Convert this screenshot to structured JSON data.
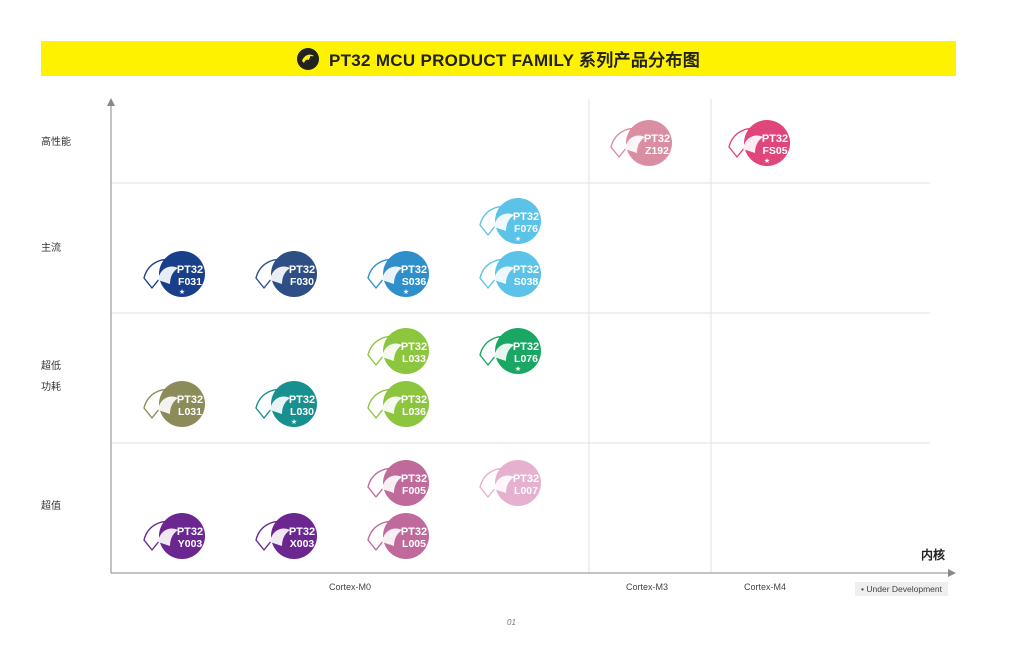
{
  "header": {
    "title": "PT32 MCU PRODUCT FAMILY 系列产品分布图",
    "logo_icon": "dolphin-logo-icon"
  },
  "rows": [
    {
      "label": "高性能"
    },
    {
      "label": "主流"
    },
    {
      "label": "超低\n功耗",
      "line1": "超低",
      "line2": "功耗"
    },
    {
      "label": "超值"
    }
  ],
  "columns": [
    {
      "label": "Cortex-M0"
    },
    {
      "label": "Cortex-M3"
    },
    {
      "label": "Cortex-M4"
    }
  ],
  "x_axis_title": "内核",
  "legend": "• Under Development",
  "page_number": "01",
  "chips": [
    {
      "line1": "PT32",
      "line2": "Z192",
      "color": "#d98ea1",
      "dev": false,
      "row": 0,
      "col": 1,
      "slot": 0
    },
    {
      "line1": "PT32",
      "line2": "FS05",
      "color": "#e0457b",
      "dev": true,
      "row": 0,
      "col": 2,
      "slot": 0
    },
    {
      "line1": "PT32",
      "line2": "F031",
      "color": "#1a3f8a",
      "dev": true,
      "row": 1,
      "col": 0,
      "slot": 0
    },
    {
      "line1": "PT32",
      "line2": "F030",
      "color": "#2d4f86",
      "dev": false,
      "row": 1,
      "col": 0,
      "slot": 1
    },
    {
      "line1": "PT32",
      "line2": "S036",
      "color": "#2f8fcb",
      "dev": true,
      "row": 1,
      "col": 0,
      "slot": 2
    },
    {
      "line1": "PT32",
      "line2": "F076",
      "color": "#5bc3e8",
      "dev": true,
      "row": 1,
      "col": 0,
      "slot": 3,
      "upper": true
    },
    {
      "line1": "PT32",
      "line2": "S038",
      "color": "#5bc3e8",
      "dev": false,
      "row": 1,
      "col": 0,
      "slot": 3
    },
    {
      "line1": "PT32",
      "line2": "L033",
      "color": "#8cc63f",
      "dev": false,
      "row": 2,
      "col": 0,
      "slot": 2,
      "upper": true
    },
    {
      "line1": "PT32",
      "line2": "L076",
      "color": "#1aa763",
      "dev": true,
      "row": 2,
      "col": 0,
      "slot": 3,
      "upper": true
    },
    {
      "line1": "PT32",
      "line2": "L031",
      "color": "#8c8c5a",
      "dev": false,
      "row": 2,
      "col": 0,
      "slot": 0
    },
    {
      "line1": "PT32",
      "line2": "L030",
      "color": "#17908f",
      "dev": true,
      "row": 2,
      "col": 0,
      "slot": 1
    },
    {
      "line1": "PT32",
      "line2": "L036",
      "color": "#8cc63f",
      "dev": false,
      "row": 2,
      "col": 0,
      "slot": 2
    },
    {
      "line1": "PT32",
      "line2": "F005",
      "color": "#c06a9c",
      "dev": false,
      "row": 3,
      "col": 0,
      "slot": 2,
      "upper": true
    },
    {
      "line1": "PT32",
      "line2": "L007",
      "color": "#e6b0cf",
      "dev": false,
      "row": 3,
      "col": 0,
      "slot": 3,
      "upper": true
    },
    {
      "line1": "PT32",
      "line2": "Y003",
      "color": "#6b2690",
      "dev": false,
      "row": 3,
      "col": 0,
      "slot": 0
    },
    {
      "line1": "PT32",
      "line2": "X003",
      "color": "#6b2690",
      "dev": false,
      "row": 3,
      "col": 0,
      "slot": 1
    },
    {
      "line1": "PT32",
      "line2": "L005",
      "color": "#c06a9c",
      "dev": false,
      "row": 3,
      "col": 0,
      "slot": 2
    }
  ]
}
